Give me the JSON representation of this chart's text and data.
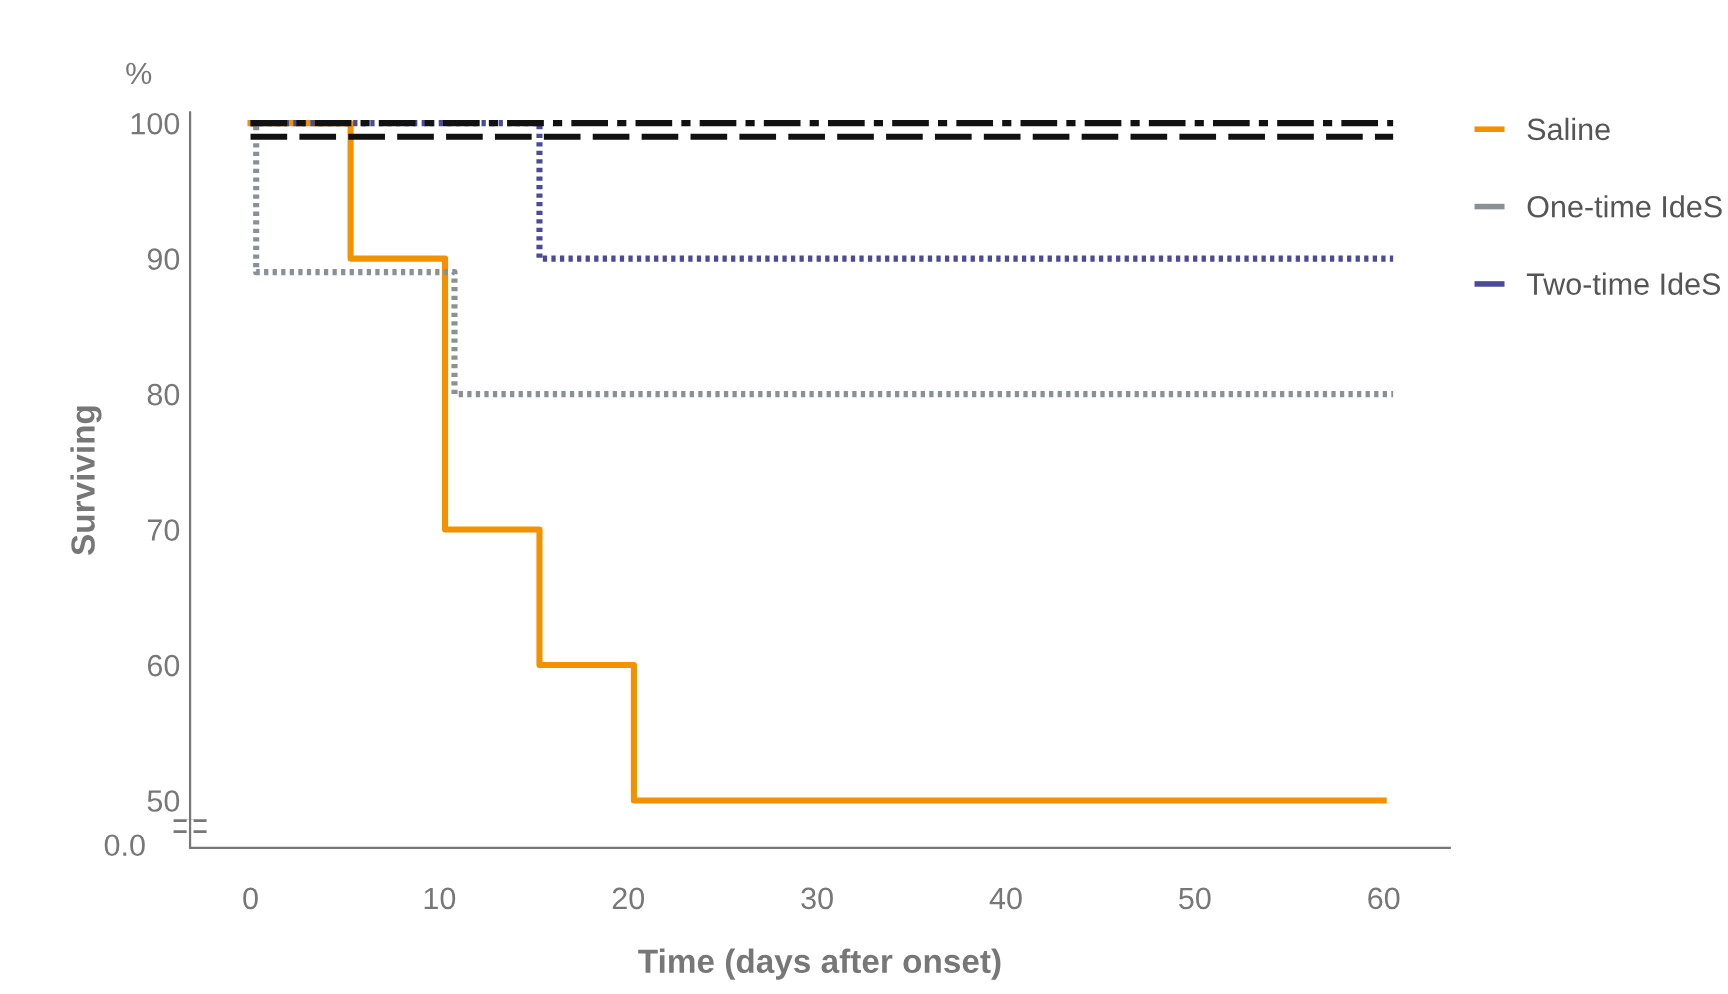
{
  "chart_data": {
    "type": "step",
    "xlabel": "Time (days after onset)",
    "ylabel": "Surviving",
    "annotations": [
      "%",
      "0.0"
    ],
    "xlim": [
      -3.2,
      63.5
    ],
    "xticks": [
      0,
      10,
      20,
      30,
      40,
      50,
      60
    ],
    "ylim": [
      46.5,
      100.8
    ],
    "yticks": [
      50,
      60,
      70,
      80,
      90,
      100
    ],
    "grid": false,
    "legend": "top right",
    "marker": "none",
    "series": [
      {
        "name": "Saline",
        "color": "#f39200",
        "line_style": "solid",
        "x": [
          0,
          5.3,
          10.3,
          15.3,
          20.3,
          60
        ],
        "values": [
          100,
          90,
          70,
          60,
          50,
          50
        ]
      },
      {
        "name": "One-time IdeS",
        "color": "#8a9196",
        "line_style": "dotted",
        "x": [
          0,
          0.3,
          10.8,
          60.5
        ],
        "values": [
          100,
          89,
          80,
          80
        ]
      },
      {
        "name": "Two-time IdeS",
        "color": "#4a4a9a",
        "line_style": "dotted",
        "x": [
          0,
          15.3,
          60.5
        ],
        "values": [
          100,
          90,
          90
        ]
      },
      {
        "color": "#111111",
        "line_style": "dashdot",
        "x": [
          0,
          60.5
        ],
        "values": [
          100,
          100
        ]
      },
      {
        "color": "#111111",
        "line_style": "dashed",
        "x": [
          0,
          60.5
        ],
        "values": [
          99,
          99
        ]
      }
    ]
  }
}
